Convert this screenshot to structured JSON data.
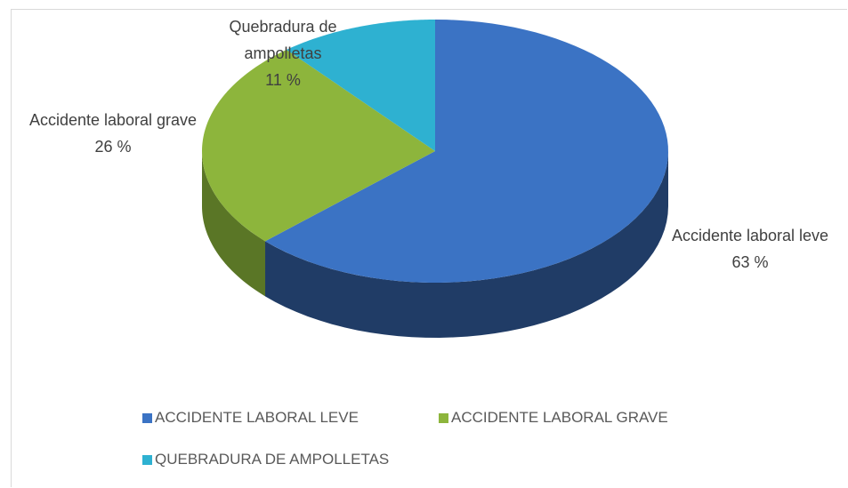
{
  "chart_data": {
    "type": "pie",
    "categories": [
      "Accidente laboral leve",
      "Accidente laboral grave",
      "Quebradura de ampolletas"
    ],
    "values": [
      63,
      26,
      11
    ],
    "value_labels": [
      "63 %",
      "26 %",
      "11 %"
    ],
    "legend_labels": [
      "ACCIDENTE LABORAL LEVE",
      "ACCIDENTE LABORAL GRAVE",
      "QUEBRADURA DE AMPOLLETAS"
    ],
    "colors": [
      "#3b73c4",
      "#8db53c",
      "#2eb1d1"
    ],
    "side_colors": [
      "#203c66",
      "#5a7626",
      "#1c7a91"
    ],
    "three_d": true
  }
}
